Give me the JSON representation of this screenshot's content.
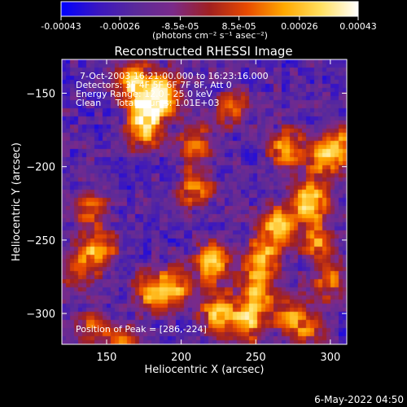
{
  "chart_data": {
    "type": "heatmap",
    "title": "Reconstructed RHESSI Image",
    "xlabel": "Heliocentric X (arcsec)",
    "ylabel": "Heliocentric Y (arcsec)",
    "xlim": [
      120,
      311
    ],
    "ylim": [
      -321,
      -127
    ],
    "xticks": [
      150,
      200,
      250,
      300
    ],
    "yticks": [
      -150,
      -200,
      -250,
      -300
    ],
    "colorbar": {
      "range": [
        -0.00043,
        0.00043
      ],
      "ticks": [
        "-0.00043",
        "-0.00026",
        "-8.5e-05",
        "8.5e-05",
        "0.00026",
        "0.00043"
      ],
      "tick_values": [
        -0.00043,
        -0.00026,
        -8.5e-05,
        8.5e-05,
        0.00026,
        0.00043
      ],
      "units_label": "(photons cm⁻² s⁻¹ asec⁻²)",
      "colormap": [
        "#0000ff",
        "#3a16c0",
        "#5a2a9a",
        "#7a2a8a",
        "#a02020",
        "#e84a00",
        "#ffa800",
        "#ffe060",
        "#ffffff"
      ]
    },
    "annotations": [
      "7-Oct-2003 16:21:00.000 to 16:23:16.000",
      "Detectors: 3F 4F 5F 6F 7F 8F, Att 0",
      "Energy Range: 12.0 - 25.0 keV",
      "Clean     Total counts: 1.01E+03"
    ],
    "peak_label": "Position of Peak = [286,-224]",
    "peak": [
      286,
      -224
    ],
    "blobs": [
      {
        "x": 178,
        "y": -158,
        "amp": 1.0
      },
      {
        "x": 168,
        "y": -142,
        "amp": 0.9
      },
      {
        "x": 190,
        "y": -150,
        "amp": 0.85
      },
      {
        "x": 175,
        "y": -175,
        "amp": 0.8
      },
      {
        "x": 286,
        "y": -224,
        "amp": 1.0
      },
      {
        "x": 265,
        "y": -240,
        "amp": 0.85
      },
      {
        "x": 255,
        "y": -262,
        "amp": 0.8
      },
      {
        "x": 250,
        "y": -285,
        "amp": 0.75
      },
      {
        "x": 245,
        "y": -305,
        "amp": 0.8
      },
      {
        "x": 222,
        "y": -265,
        "amp": 0.9
      },
      {
        "x": 225,
        "y": -300,
        "amp": 0.85
      },
      {
        "x": 210,
        "y": -215,
        "amp": 0.6
      },
      {
        "x": 210,
        "y": -185,
        "amp": 0.55
      },
      {
        "x": 145,
        "y": -257,
        "amp": 0.8
      },
      {
        "x": 139,
        "y": -230,
        "amp": 0.5
      },
      {
        "x": 180,
        "y": -284,
        "amp": 0.75
      },
      {
        "x": 197,
        "y": -283,
        "amp": 0.7
      },
      {
        "x": 271,
        "y": -188,
        "amp": 0.75
      },
      {
        "x": 295,
        "y": -196,
        "amp": 0.7
      },
      {
        "x": 307,
        "y": -185,
        "amp": 0.6
      },
      {
        "x": 292,
        "y": -252,
        "amp": 0.65
      },
      {
        "x": 300,
        "y": -278,
        "amp": 0.55
      },
      {
        "x": 285,
        "y": -310,
        "amp": 0.5
      },
      {
        "x": 160,
        "y": -320,
        "amp": 0.5
      },
      {
        "x": 140,
        "y": -310,
        "amp": 0.45
      },
      {
        "x": 130,
        "y": -270,
        "amp": 0.45
      },
      {
        "x": 235,
        "y": -160,
        "amp": 0.45
      },
      {
        "x": 272,
        "y": -300,
        "amp": 0.55
      }
    ]
  },
  "footer": {
    "date": "6-May-2022 04:50"
  }
}
